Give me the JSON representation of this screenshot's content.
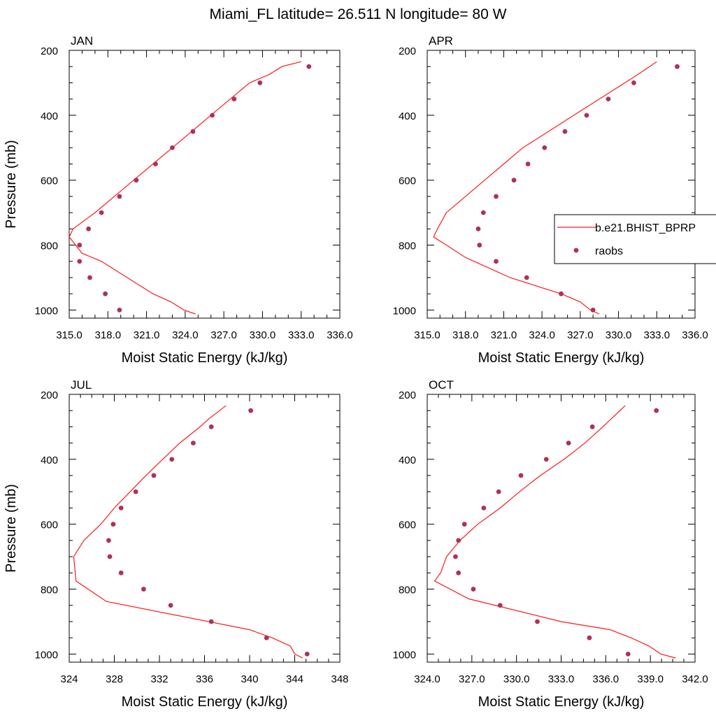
{
  "title": "Miami_FL  latitude= 26.511 N longitude= 80 W",
  "legend": {
    "model_label": "b.e21.BHIST_BPRP",
    "obs_label": "raobs"
  },
  "colors": {
    "model": "#ff1a1a",
    "obs": "#b0305a"
  },
  "chart_data": [
    {
      "type": "line",
      "month": "JAN",
      "xlabel": "Moist Static Energy (kJ/kg)",
      "ylabel": "Pressure (mb)",
      "xlim": [
        315,
        336
      ],
      "ylim": [
        1025,
        200
      ],
      "xticks": [
        "315.0",
        "318.0",
        "321.0",
        "324.0",
        "327.0",
        "330.0",
        "333.0",
        "336.0"
      ],
      "yticks": [
        "200",
        "400",
        "600",
        "800",
        "1000"
      ],
      "series": [
        {
          "name": "b.e21.BHIST_BPRP",
          "kind": "line",
          "x": [
            324.8,
            323.9,
            322.9,
            321.5,
            319.5,
            317.5,
            316.0,
            315.0,
            315.3,
            317.0,
            318.5,
            320.0,
            321.5,
            323.0,
            324.5,
            326.0,
            327.5,
            329.0,
            330.5,
            331.5,
            333.0
          ],
          "y": [
            1012,
            1000,
            975,
            950,
            900,
            850,
            825,
            775,
            750,
            700,
            650,
            600,
            550,
            500,
            450,
            400,
            350,
            300,
            275,
            250,
            235
          ]
        },
        {
          "name": "raobs",
          "kind": "points",
          "x": [
            318.9,
            317.8,
            316.6,
            315.8,
            315.8,
            316.5,
            317.5,
            318.9,
            320.2,
            321.7,
            323.0,
            324.6,
            326.1,
            327.8,
            329.8,
            333.6
          ],
          "y": [
            1000,
            950,
            900,
            850,
            800,
            750,
            700,
            650,
            600,
            550,
            500,
            450,
            400,
            350,
            300,
            250
          ]
        }
      ]
    },
    {
      "type": "line",
      "month": "APR",
      "xlabel": "Moist Static Energy (kJ/kg)",
      "ylabel": "",
      "xlim": [
        315,
        336
      ],
      "ylim": [
        1025,
        200
      ],
      "xticks": [
        "315.0",
        "318.0",
        "321.0",
        "324.0",
        "327.0",
        "330.0",
        "333.0",
        "336.0"
      ],
      "yticks": [
        "200",
        "400",
        "600",
        "800",
        "1000"
      ],
      "series": [
        {
          "name": "b.e21.BHIST_BPRP",
          "kind": "line",
          "x": [
            328.5,
            327.8,
            327.0,
            325.5,
            321.5,
            318.0,
            316.5,
            315.5,
            315.8,
            316.5,
            318.0,
            319.5,
            321.0,
            322.5,
            324.5,
            326.5,
            328.5,
            330.5,
            331.5,
            333.0
          ],
          "y": [
            1012,
            1000,
            975,
            950,
            900,
            838,
            800,
            775,
            750,
            700,
            650,
            600,
            550,
            500,
            450,
            400,
            350,
            300,
            275,
            235
          ]
        },
        {
          "name": "raobs",
          "kind": "points",
          "x": [
            328.0,
            325.5,
            322.8,
            320.4,
            319.1,
            319.0,
            319.4,
            320.4,
            321.8,
            322.9,
            324.2,
            325.8,
            327.5,
            329.2,
            331.2,
            334.6
          ],
          "y": [
            1000,
            950,
            900,
            850,
            800,
            750,
            700,
            650,
            600,
            550,
            500,
            450,
            400,
            350,
            300,
            250
          ]
        }
      ]
    },
    {
      "type": "line",
      "month": "JUL",
      "xlabel": "Moist Static Energy (kJ/kg)",
      "ylabel": "Pressure (mb)",
      "xlim": [
        324,
        348
      ],
      "ylim": [
        1025,
        200
      ],
      "xticks": [
        "324",
        "328",
        "332",
        "336",
        "340",
        "344",
        "348"
      ],
      "yticks": [
        "200",
        "400",
        "600",
        "800",
        "1000"
      ],
      "series": [
        {
          "name": "b.e21.BHIST_BPRP",
          "kind": "line",
          "x": [
            344.7,
            344.0,
            343.6,
            342.0,
            340.0,
            327.3,
            324.6,
            324.4,
            325.3,
            326.8,
            328.0,
            329.4,
            330.8,
            332.3,
            333.8,
            335.6,
            336.4,
            337.9
          ],
          "y": [
            1012,
            1000,
            975,
            950,
            925,
            838,
            775,
            700,
            650,
            600,
            550,
            500,
            450,
            400,
            350,
            300,
            275,
            235
          ]
        },
        {
          "name": "raobs",
          "kind": "points",
          "x": [
            345.1,
            341.5,
            336.6,
            333.0,
            330.6,
            328.6,
            327.6,
            327.5,
            327.9,
            328.6,
            329.9,
            331.5,
            333.1,
            335.0,
            336.6,
            340.1
          ],
          "y": [
            1000,
            950,
            900,
            850,
            800,
            750,
            700,
            650,
            600,
            550,
            500,
            450,
            400,
            350,
            300,
            250
          ]
        }
      ]
    },
    {
      "type": "line",
      "month": "OCT",
      "xlabel": "Moist Static Energy (kJ/kg)",
      "ylabel": "",
      "xlim": [
        324,
        342
      ],
      "ylim": [
        1025,
        200
      ],
      "xticks": [
        "324.0",
        "327.0",
        "330.0",
        "333.0",
        "336.0",
        "339.0",
        "342.0"
      ],
      "yticks": [
        "200",
        "400",
        "600",
        "800",
        "1000"
      ],
      "series": [
        {
          "name": "b.e21.BHIST_BPRP",
          "kind": "line",
          "x": [
            340.7,
            339.7,
            338.9,
            337.7,
            336.3,
            333.0,
            326.8,
            324.5,
            324.9,
            325.3,
            326.2,
            327.4,
            328.9,
            330.2,
            331.6,
            333.2,
            334.6,
            335.8,
            337.3
          ],
          "y": [
            1012,
            1000,
            975,
            950,
            925,
            900,
            830,
            775,
            750,
            700,
            650,
            600,
            550,
            500,
            450,
            400,
            350,
            300,
            235
          ]
        },
        {
          "name": "raobs",
          "kind": "points",
          "x": [
            337.5,
            334.9,
            331.4,
            328.9,
            327.1,
            326.1,
            325.9,
            326.1,
            326.5,
            327.8,
            328.8,
            330.3,
            332.0,
            333.5,
            335.1,
            339.4
          ],
          "y": [
            1000,
            950,
            900,
            850,
            800,
            750,
            700,
            650,
            600,
            550,
            500,
            450,
            400,
            350,
            300,
            250
          ]
        }
      ]
    }
  ]
}
